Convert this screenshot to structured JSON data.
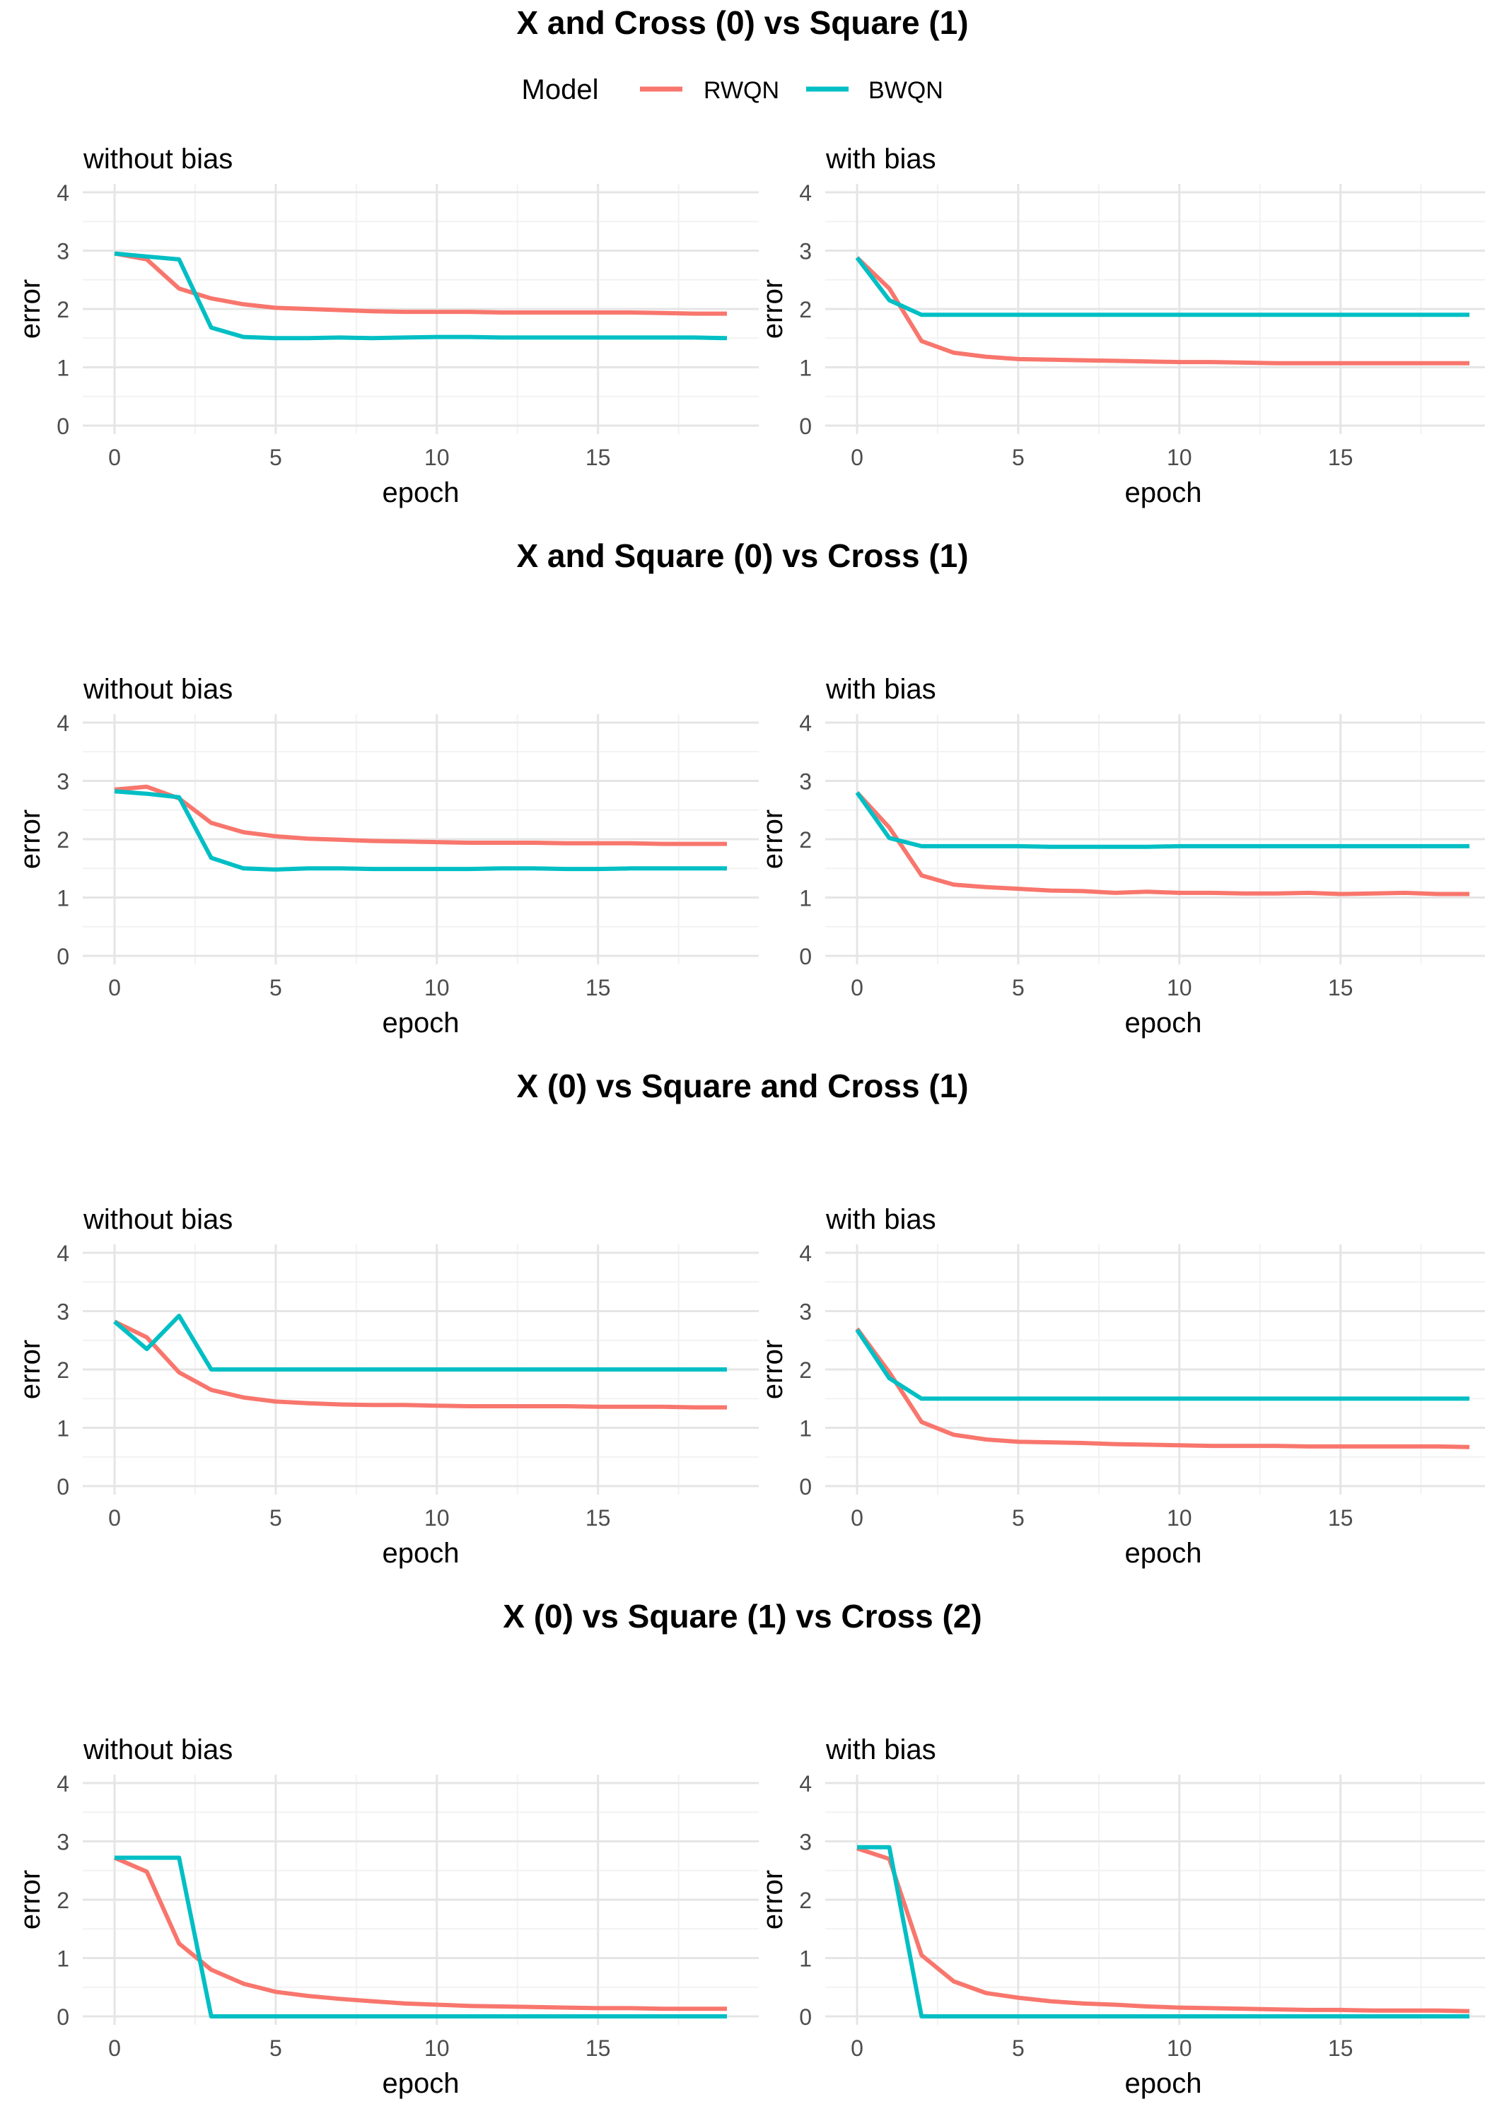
{
  "legend": {
    "title": "Model",
    "entries": [
      {
        "name": "RWQN",
        "color": "#f8766d"
      },
      {
        "name": "BWQN",
        "color": "#00bfc4"
      }
    ]
  },
  "colors": {
    "grid_major": "#e5e5e5",
    "grid_minor": "#f2f2f2",
    "tick_text": "#4d4d4d"
  },
  "chart_data": [
    {
      "title": "X and Cross (0) vs Square (1)",
      "panels": [
        {
          "type": "line",
          "subtitle": "without bias",
          "xlabel": "epoch",
          "ylabel": "error",
          "xlim": [
            0,
            19
          ],
          "ylim": [
            0,
            4
          ],
          "x_ticks": [
            0,
            5,
            10,
            15
          ],
          "y_ticks": [
            0,
            1,
            2,
            3,
            4
          ],
          "grid": true,
          "x": [
            0,
            1,
            2,
            3,
            4,
            5,
            6,
            7,
            8,
            9,
            10,
            11,
            12,
            13,
            14,
            15,
            16,
            17,
            18,
            19
          ],
          "series": [
            {
              "name": "RWQN",
              "values": [
                2.95,
                2.85,
                2.35,
                2.18,
                2.08,
                2.02,
                2.0,
                1.98,
                1.96,
                1.95,
                1.95,
                1.95,
                1.94,
                1.94,
                1.94,
                1.94,
                1.94,
                1.93,
                1.92,
                1.92
              ]
            },
            {
              "name": "BWQN",
              "values": [
                2.95,
                2.9,
                2.85,
                1.68,
                1.52,
                1.5,
                1.5,
                1.51,
                1.5,
                1.51,
                1.52,
                1.52,
                1.51,
                1.51,
                1.51,
                1.51,
                1.51,
                1.51,
                1.51,
                1.5
              ]
            }
          ]
        },
        {
          "type": "line",
          "subtitle": "with bias",
          "xlabel": "epoch",
          "ylabel": "error",
          "xlim": [
            0,
            19
          ],
          "ylim": [
            0,
            4
          ],
          "x_ticks": [
            0,
            5,
            10,
            15
          ],
          "y_ticks": [
            0,
            1,
            2,
            3,
            4
          ],
          "grid": true,
          "x": [
            0,
            1,
            2,
            3,
            4,
            5,
            6,
            7,
            8,
            9,
            10,
            11,
            12,
            13,
            14,
            15,
            16,
            17,
            18,
            19
          ],
          "series": [
            {
              "name": "RWQN",
              "values": [
                2.88,
                2.35,
                1.45,
                1.25,
                1.18,
                1.14,
                1.13,
                1.12,
                1.11,
                1.1,
                1.09,
                1.09,
                1.08,
                1.07,
                1.07,
                1.07,
                1.07,
                1.07,
                1.07,
                1.07
              ]
            },
            {
              "name": "BWQN",
              "values": [
                2.88,
                2.15,
                1.9,
                1.9,
                1.9,
                1.9,
                1.9,
                1.9,
                1.9,
                1.9,
                1.9,
                1.9,
                1.9,
                1.9,
                1.9,
                1.9,
                1.9,
                1.9,
                1.9,
                1.9
              ]
            }
          ]
        }
      ]
    },
    {
      "title": "X and Square (0) vs Cross (1)",
      "panels": [
        {
          "type": "line",
          "subtitle": "without bias",
          "xlabel": "epoch",
          "ylabel": "error",
          "xlim": [
            0,
            19
          ],
          "ylim": [
            0,
            4
          ],
          "x_ticks": [
            0,
            5,
            10,
            15
          ],
          "y_ticks": [
            0,
            1,
            2,
            3,
            4
          ],
          "grid": true,
          "x": [
            0,
            1,
            2,
            3,
            4,
            5,
            6,
            7,
            8,
            9,
            10,
            11,
            12,
            13,
            14,
            15,
            16,
            17,
            18,
            19
          ],
          "series": [
            {
              "name": "RWQN",
              "values": [
                2.85,
                2.9,
                2.7,
                2.28,
                2.12,
                2.05,
                2.01,
                1.99,
                1.97,
                1.96,
                1.95,
                1.94,
                1.94,
                1.94,
                1.93,
                1.93,
                1.93,
                1.92,
                1.92,
                1.92
              ]
            },
            {
              "name": "BWQN",
              "values": [
                2.82,
                2.78,
                2.72,
                1.68,
                1.5,
                1.48,
                1.5,
                1.5,
                1.49,
                1.49,
                1.49,
                1.49,
                1.5,
                1.5,
                1.49,
                1.49,
                1.5,
                1.5,
                1.5,
                1.5
              ]
            }
          ]
        },
        {
          "type": "line",
          "subtitle": "with bias",
          "xlabel": "epoch",
          "ylabel": "error",
          "xlim": [
            0,
            19
          ],
          "ylim": [
            0,
            4
          ],
          "x_ticks": [
            0,
            5,
            10,
            15
          ],
          "y_ticks": [
            0,
            1,
            2,
            3,
            4
          ],
          "grid": true,
          "x": [
            0,
            1,
            2,
            3,
            4,
            5,
            6,
            7,
            8,
            9,
            10,
            11,
            12,
            13,
            14,
            15,
            16,
            17,
            18,
            19
          ],
          "series": [
            {
              "name": "RWQN",
              "values": [
                2.8,
                2.2,
                1.38,
                1.22,
                1.18,
                1.15,
                1.12,
                1.11,
                1.08,
                1.1,
                1.08,
                1.08,
                1.07,
                1.07,
                1.08,
                1.06,
                1.07,
                1.08,
                1.06,
                1.06
              ]
            },
            {
              "name": "BWQN",
              "values": [
                2.8,
                2.02,
                1.88,
                1.88,
                1.88,
                1.88,
                1.87,
                1.87,
                1.87,
                1.87,
                1.88,
                1.88,
                1.88,
                1.88,
                1.88,
                1.88,
                1.88,
                1.88,
                1.88,
                1.88
              ]
            }
          ]
        }
      ]
    },
    {
      "title": "X (0) vs Square and Cross (1)",
      "panels": [
        {
          "type": "line",
          "subtitle": "without bias",
          "xlabel": "epoch",
          "ylabel": "error",
          "xlim": [
            0,
            19
          ],
          "ylim": [
            0,
            4
          ],
          "x_ticks": [
            0,
            5,
            10,
            15
          ],
          "y_ticks": [
            0,
            1,
            2,
            3,
            4
          ],
          "grid": true,
          "x": [
            0,
            1,
            2,
            3,
            4,
            5,
            6,
            7,
            8,
            9,
            10,
            11,
            12,
            13,
            14,
            15,
            16,
            17,
            18,
            19
          ],
          "series": [
            {
              "name": "RWQN",
              "values": [
                2.82,
                2.55,
                1.95,
                1.65,
                1.52,
                1.45,
                1.42,
                1.4,
                1.39,
                1.39,
                1.38,
                1.37,
                1.37,
                1.37,
                1.37,
                1.36,
                1.36,
                1.36,
                1.35,
                1.35
              ]
            },
            {
              "name": "BWQN",
              "values": [
                2.82,
                2.35,
                2.92,
                2.0,
                2.0,
                2.0,
                2.0,
                2.0,
                2.0,
                2.0,
                2.0,
                2.0,
                2.0,
                2.0,
                2.0,
                2.0,
                2.0,
                2.0,
                2.0,
                2.0
              ]
            }
          ]
        },
        {
          "type": "line",
          "subtitle": "with bias",
          "xlabel": "epoch",
          "ylabel": "error",
          "xlim": [
            0,
            19
          ],
          "ylim": [
            0,
            4
          ],
          "x_ticks": [
            0,
            5,
            10,
            15
          ],
          "y_ticks": [
            0,
            1,
            2,
            3,
            4
          ],
          "grid": true,
          "x": [
            0,
            1,
            2,
            3,
            4,
            5,
            6,
            7,
            8,
            9,
            10,
            11,
            12,
            13,
            14,
            15,
            16,
            17,
            18,
            19
          ],
          "series": [
            {
              "name": "RWQN",
              "values": [
                2.7,
                1.95,
                1.1,
                0.88,
                0.8,
                0.76,
                0.75,
                0.74,
                0.72,
                0.71,
                0.7,
                0.69,
                0.69,
                0.69,
                0.68,
                0.68,
                0.68,
                0.68,
                0.68,
                0.67
              ]
            },
            {
              "name": "BWQN",
              "values": [
                2.68,
                1.85,
                1.5,
                1.5,
                1.5,
                1.5,
                1.5,
                1.5,
                1.5,
                1.5,
                1.5,
                1.5,
                1.5,
                1.5,
                1.5,
                1.5,
                1.5,
                1.5,
                1.5,
                1.5
              ]
            }
          ]
        }
      ]
    },
    {
      "title": "X (0) vs Square (1) vs Cross (2)",
      "panels": [
        {
          "type": "line",
          "subtitle": "without bias",
          "xlabel": "epoch",
          "ylabel": "error",
          "xlim": [
            0,
            19
          ],
          "ylim": [
            0,
            4
          ],
          "x_ticks": [
            0,
            5,
            10,
            15
          ],
          "y_ticks": [
            0,
            1,
            2,
            3,
            4
          ],
          "grid": true,
          "x": [
            0,
            1,
            2,
            3,
            4,
            5,
            6,
            7,
            8,
            9,
            10,
            11,
            12,
            13,
            14,
            15,
            16,
            17,
            18,
            19
          ],
          "series": [
            {
              "name": "RWQN",
              "values": [
                2.72,
                2.48,
                1.25,
                0.8,
                0.56,
                0.42,
                0.35,
                0.3,
                0.26,
                0.22,
                0.2,
                0.18,
                0.17,
                0.16,
                0.15,
                0.14,
                0.14,
                0.13,
                0.13,
                0.13
              ]
            },
            {
              "name": "BWQN",
              "values": [
                2.72,
                2.72,
                2.72,
                0.0,
                0.0,
                0.0,
                0.0,
                0.0,
                0.0,
                0.0,
                0.0,
                0.0,
                0.0,
                0.0,
                0.0,
                0.0,
                0.0,
                0.0,
                0.0,
                0.0
              ]
            }
          ]
        },
        {
          "type": "line",
          "subtitle": "with bias",
          "xlabel": "epoch",
          "ylabel": "error",
          "xlim": [
            0,
            19
          ],
          "ylim": [
            0,
            4
          ],
          "x_ticks": [
            0,
            5,
            10,
            15
          ],
          "y_ticks": [
            0,
            1,
            2,
            3,
            4
          ],
          "grid": true,
          "x": [
            0,
            1,
            2,
            3,
            4,
            5,
            6,
            7,
            8,
            9,
            10,
            11,
            12,
            13,
            14,
            15,
            16,
            17,
            18,
            19
          ],
          "series": [
            {
              "name": "RWQN",
              "values": [
                2.88,
                2.7,
                1.05,
                0.6,
                0.4,
                0.32,
                0.26,
                0.22,
                0.2,
                0.17,
                0.15,
                0.14,
                0.13,
                0.12,
                0.11,
                0.11,
                0.1,
                0.1,
                0.1,
                0.09
              ]
            },
            {
              "name": "BWQN",
              "values": [
                2.9,
                2.9,
                0.0,
                0.0,
                0.0,
                0.0,
                0.0,
                0.0,
                0.0,
                0.0,
                0.0,
                0.0,
                0.0,
                0.0,
                0.0,
                0.0,
                0.0,
                0.0,
                0.0,
                0.0
              ]
            }
          ]
        }
      ]
    }
  ]
}
